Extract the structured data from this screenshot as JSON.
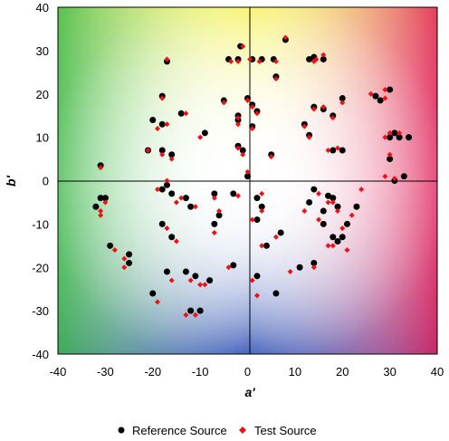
{
  "chart_data": {
    "type": "scatter",
    "title": "",
    "xlabel": "a'",
    "ylabel": "b'",
    "xlim": [
      -40,
      40
    ],
    "ylim": [
      -40,
      40
    ],
    "xticks": [
      -40,
      -30,
      -20,
      -10,
      0,
      10,
      20,
      30,
      40
    ],
    "yticks": [
      -40,
      -30,
      -20,
      -10,
      0,
      10,
      20,
      30,
      40
    ],
    "grid": false,
    "background": "CIELAB a'b' hue gradient (green upper-left, orange upper-right, blue lower-left, magenta lower-right)",
    "legend_position": "bottom",
    "colors": {
      "reference": "#000000",
      "test": "#ee1111"
    },
    "series": [
      {
        "name": "Reference Source",
        "marker": "circle",
        "points": [
          [
            -1.5,
            31
          ],
          [
            1,
            28
          ],
          [
            3,
            28
          ],
          [
            5.5,
            28
          ],
          [
            8,
            32.5
          ],
          [
            13,
            28
          ],
          [
            14,
            28.5
          ],
          [
            16,
            28
          ],
          [
            -17,
            27.5
          ],
          [
            -4,
            28
          ],
          [
            -2,
            28
          ],
          [
            6,
            24
          ],
          [
            -18,
            19.5
          ],
          [
            -5,
            18.5
          ],
          [
            0,
            19
          ],
          [
            1,
            17.5
          ],
          [
            2,
            16
          ],
          [
            -20,
            14
          ],
          [
            -14,
            15.5
          ],
          [
            -18,
            13
          ],
          [
            -2,
            15
          ],
          [
            -2,
            14
          ],
          [
            12,
            13
          ],
          [
            13,
            10.5
          ],
          [
            14,
            17
          ],
          [
            16,
            16.5
          ],
          [
            18,
            15
          ],
          [
            20,
            19
          ],
          [
            27,
            19.5
          ],
          [
            28,
            18.5
          ],
          [
            30,
            21
          ],
          [
            -9,
            11
          ],
          [
            1,
            12.5
          ],
          [
            -21,
            7
          ],
          [
            -18,
            7
          ],
          [
            -16,
            6
          ],
          [
            -2,
            8
          ],
          [
            -1,
            7
          ],
          [
            0,
            1
          ],
          [
            5,
            6
          ],
          [
            18,
            7
          ],
          [
            20,
            7
          ],
          [
            30,
            10
          ],
          [
            31,
            11
          ],
          [
            32,
            10
          ],
          [
            34,
            10
          ],
          [
            30,
            5
          ],
          [
            31,
            0
          ],
          [
            33,
            1
          ],
          [
            -31,
            3.5
          ],
          [
            -17,
            -1
          ],
          [
            -18,
            -2
          ],
          [
            -16,
            -3
          ],
          [
            -7,
            -3
          ],
          [
            -3,
            -3
          ],
          [
            2,
            -4
          ],
          [
            3,
            -6
          ],
          [
            13,
            -5
          ],
          [
            14,
            -2
          ],
          [
            16,
            -7
          ],
          [
            17,
            -3.5
          ],
          [
            18,
            -4
          ],
          [
            19,
            -6
          ],
          [
            21,
            -10
          ],
          [
            23,
            -6
          ],
          [
            -13,
            -4
          ],
          [
            -12,
            -6
          ],
          [
            -31,
            -4
          ],
          [
            -30,
            -4
          ],
          [
            -32,
            -6
          ],
          [
            -18,
            -10
          ],
          [
            -16,
            -13
          ],
          [
            -7,
            -10
          ],
          [
            -6,
            -8
          ],
          [
            2,
            -9
          ],
          [
            4,
            -15
          ],
          [
            7,
            -12
          ],
          [
            16,
            -10
          ],
          [
            18,
            -13
          ],
          [
            19,
            -14
          ],
          [
            20,
            -13
          ],
          [
            -29,
            -15
          ],
          [
            -25,
            -17
          ],
          [
            -25,
            -19
          ],
          [
            -17,
            -21
          ],
          [
            -13,
            -21
          ],
          [
            -11,
            -22
          ],
          [
            -8,
            -23
          ],
          [
            -3,
            -19.5
          ],
          [
            2,
            -22
          ],
          [
            6,
            -26
          ],
          [
            11,
            -20
          ],
          [
            14,
            -19
          ],
          [
            -20,
            -26
          ],
          [
            -12,
            -30
          ],
          [
            -10,
            -30
          ]
        ]
      },
      {
        "name": "Test Source",
        "marker": "diamond",
        "points": [
          [
            -1,
            31
          ],
          [
            0.5,
            28
          ],
          [
            2.5,
            27.5
          ],
          [
            6,
            27.5
          ],
          [
            8,
            33
          ],
          [
            14,
            27.5
          ],
          [
            14.5,
            28
          ],
          [
            16,
            29
          ],
          [
            -17,
            28
          ],
          [
            -3.5,
            27.5
          ],
          [
            -2,
            27.5
          ],
          [
            6,
            23.5
          ],
          [
            -18,
            19
          ],
          [
            -5,
            18
          ],
          [
            0,
            18.5
          ],
          [
            1,
            17
          ],
          [
            2,
            15.5
          ],
          [
            -19,
            12
          ],
          [
            -13,
            15.5
          ],
          [
            -17,
            13
          ],
          [
            -2,
            14.5
          ],
          [
            -2,
            13
          ],
          [
            12,
            12.5
          ],
          [
            13,
            10
          ],
          [
            14,
            16.5
          ],
          [
            16,
            17
          ],
          [
            18,
            14.5
          ],
          [
            20,
            18
          ],
          [
            26,
            20
          ],
          [
            29,
            21
          ],
          [
            29,
            19
          ],
          [
            -10,
            10
          ],
          [
            1,
            12
          ],
          [
            -21,
            7
          ],
          [
            -18,
            6
          ],
          [
            -16,
            5
          ],
          [
            -2,
            7.5
          ],
          [
            -1,
            6
          ],
          [
            0,
            2
          ],
          [
            5,
            5.5
          ],
          [
            17,
            7
          ],
          [
            19,
            7.5
          ],
          [
            29,
            10
          ],
          [
            30,
            11
          ],
          [
            32,
            11
          ],
          [
            30,
            6
          ],
          [
            29,
            1
          ],
          [
            31,
            0.5
          ],
          [
            -31,
            3
          ],
          [
            -17,
            0
          ],
          [
            -19,
            -2
          ],
          [
            -15,
            -5
          ],
          [
            -7,
            -4
          ],
          [
            -2,
            -3.5
          ],
          [
            3,
            -3
          ],
          [
            3,
            -7
          ],
          [
            12,
            -7
          ],
          [
            15,
            -3
          ],
          [
            17,
            -5
          ],
          [
            18,
            -5
          ],
          [
            19,
            -7
          ],
          [
            20,
            -11
          ],
          [
            24,
            -2
          ],
          [
            22,
            -8
          ],
          [
            -14,
            -4
          ],
          [
            -11,
            -6
          ],
          [
            -30,
            -5
          ],
          [
            -31,
            -7
          ],
          [
            -31,
            -8
          ],
          [
            -17,
            -11
          ],
          [
            -15,
            -14
          ],
          [
            -7,
            -12
          ],
          [
            -6,
            -7
          ],
          [
            1,
            -9
          ],
          [
            3,
            -15
          ],
          [
            6,
            -13
          ],
          [
            15,
            -9
          ],
          [
            17,
            -15
          ],
          [
            18,
            -15
          ],
          [
            21,
            -16
          ],
          [
            -28,
            -16
          ],
          [
            -26,
            -18
          ],
          [
            -26,
            -20
          ],
          [
            -16,
            -23
          ],
          [
            -12,
            -23
          ],
          [
            -10,
            -24
          ],
          [
            -9,
            -24
          ],
          [
            -4,
            -20
          ],
          [
            1,
            -23
          ],
          [
            2,
            -26.5
          ],
          [
            9,
            -21
          ],
          [
            14,
            -20
          ],
          [
            -19,
            -28
          ],
          [
            -13,
            -31
          ],
          [
            -11,
            -31
          ]
        ]
      }
    ]
  }
}
